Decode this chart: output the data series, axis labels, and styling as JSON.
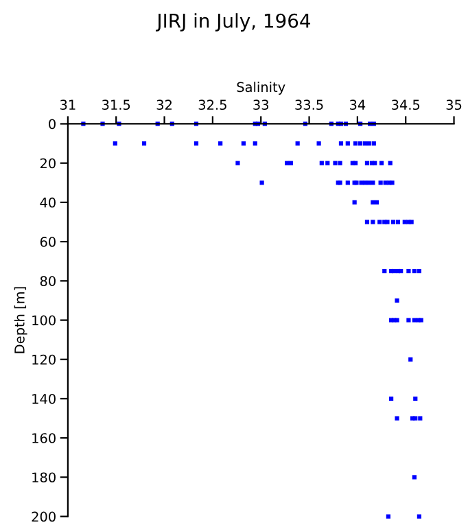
{
  "chart_data": {
    "type": "scatter",
    "title": "JIRJ in July, 1964",
    "xlabel": "Salinity",
    "ylabel": "Depth [m]",
    "series": [
      {
        "color": "#0000ff",
        "x": [
          31.16,
          31.36,
          31.53,
          31.93,
          32.08,
          32.33,
          32.94,
          32.97,
          33.04,
          33.46,
          33.73,
          33.8,
          33.83,
          33.88,
          34.03,
          34.13,
          34.17,
          31.49,
          31.79,
          32.33,
          32.58,
          32.82,
          32.94,
          33.38,
          33.6,
          33.83,
          33.9,
          33.98,
          34.03,
          34.08,
          34.12,
          34.17,
          32.76,
          33.27,
          33.31,
          33.63,
          33.69,
          33.77,
          33.82,
          33.95,
          33.98,
          34.1,
          34.15,
          34.18,
          34.25,
          34.34,
          33.01,
          33.8,
          33.82,
          33.9,
          33.97,
          33.99,
          34.04,
          34.08,
          34.12,
          34.16,
          34.24,
          34.29,
          34.33,
          34.36,
          33.97,
          34.16,
          34.2,
          34.1,
          34.16,
          34.23,
          34.28,
          34.31,
          34.37,
          34.42,
          34.49,
          34.53,
          34.56,
          34.28,
          34.35,
          34.38,
          34.42,
          34.45,
          34.53,
          34.59,
          34.64,
          34.41,
          34.35,
          34.38,
          34.41,
          34.53,
          34.59,
          34.63,
          34.66,
          34.55,
          34.35,
          34.6,
          34.41,
          34.57,
          34.6,
          34.65,
          34.59,
          34.32,
          34.64
        ],
        "values": [
          0,
          0,
          0,
          0,
          0,
          0,
          0,
          0,
          0,
          0,
          0,
          0,
          0,
          0,
          0,
          0,
          0,
          10,
          10,
          10,
          10,
          10,
          10,
          10,
          10,
          10,
          10,
          10,
          10,
          10,
          10,
          10,
          20,
          20,
          20,
          20,
          20,
          20,
          20,
          20,
          20,
          20,
          20,
          20,
          20,
          20,
          30,
          30,
          30,
          30,
          30,
          30,
          30,
          30,
          30,
          30,
          30,
          30,
          30,
          30,
          40,
          40,
          40,
          50,
          50,
          50,
          50,
          50,
          50,
          50,
          50,
          50,
          50,
          75,
          75,
          75,
          75,
          75,
          75,
          75,
          75,
          90,
          100,
          100,
          100,
          100,
          100,
          100,
          100,
          120,
          140,
          140,
          150,
          150,
          150,
          150,
          180,
          200,
          200
        ]
      }
    ],
    "marker": "square",
    "grid": false,
    "legend": false,
    "xlim": [
      31,
      35
    ],
    "xticks": [
      31,
      31.5,
      32,
      32.5,
      33,
      33.5,
      34,
      34.5,
      35
    ],
    "ylim": [
      200,
      0
    ],
    "yticks": [
      0,
      20,
      40,
      60,
      80,
      100,
      120,
      140,
      160,
      180,
      200
    ]
  }
}
